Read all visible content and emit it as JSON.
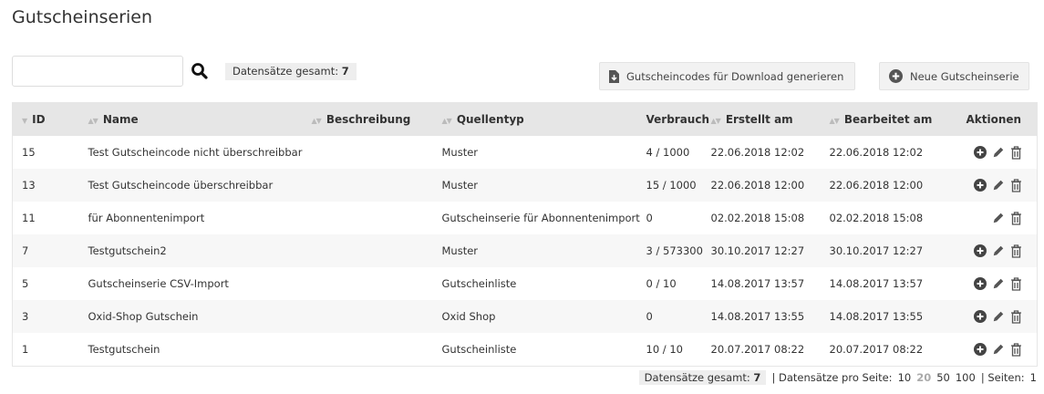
{
  "title": "Gutscheinserien",
  "search": {
    "value": "",
    "placeholder": ""
  },
  "total_label": "Datensätze gesamt:",
  "total_count": "7",
  "buttons": {
    "generate": "Gutscheincodes für Download generieren",
    "new": "Neue Gutscheinserie"
  },
  "columns": [
    "ID",
    "Name",
    "Beschreibung",
    "Quellentyp",
    "Verbrauch",
    "Erstellt am",
    "Bearbeitet am",
    "Aktionen"
  ],
  "rows": [
    {
      "id": "15",
      "name": "Test Gutscheincode nicht überschreibbar",
      "desc": "",
      "source": "Muster",
      "usage": "4 / 1000",
      "created": "22.06.2018 12:02",
      "edited": "22.06.2018 12:02",
      "can_add": true
    },
    {
      "id": "13",
      "name": "Test Gutscheincode überschreibbar",
      "desc": "",
      "source": "Muster",
      "usage": "15 / 1000",
      "created": "22.06.2018 12:00",
      "edited": "22.06.2018 12:00",
      "can_add": true
    },
    {
      "id": "11",
      "name": "für Abonnentenimport",
      "desc": "",
      "source": "Gutscheinserie für Abonnentenimport",
      "usage": "0",
      "created": "02.02.2018 15:08",
      "edited": "02.02.2018 15:08",
      "can_add": false
    },
    {
      "id": "7",
      "name": "Testgutschein2",
      "desc": "",
      "source": "Muster",
      "usage": "3 / 573300",
      "created": "30.10.2017 12:27",
      "edited": "30.10.2017 12:27",
      "can_add": true
    },
    {
      "id": "5",
      "name": "Gutscheinserie CSV-Import",
      "desc": "",
      "source": "Gutscheinliste",
      "usage": "0 / 10",
      "created": "14.08.2017 13:57",
      "edited": "14.08.2017 13:57",
      "can_add": true
    },
    {
      "id": "3",
      "name": "Oxid-Shop Gutschein",
      "desc": "",
      "source": "Oxid Shop",
      "usage": "0",
      "created": "14.08.2017 13:55",
      "edited": "14.08.2017 13:55",
      "can_add": true
    },
    {
      "id": "1",
      "name": "Testgutschein",
      "desc": "",
      "source": "Gutscheinliste",
      "usage": "10 / 10",
      "created": "20.07.2017 08:22",
      "edited": "20.07.2017 08:22",
      "can_add": true
    }
  ],
  "footer": {
    "total_label": "Datensätze gesamt:",
    "total_count": "7",
    "per_page_label": "| Datensätze pro Seite:",
    "per_page_options": [
      "10",
      "20",
      "50",
      "100"
    ],
    "per_page_active": "20",
    "pages_label": "| Seiten:",
    "pages": "1"
  }
}
